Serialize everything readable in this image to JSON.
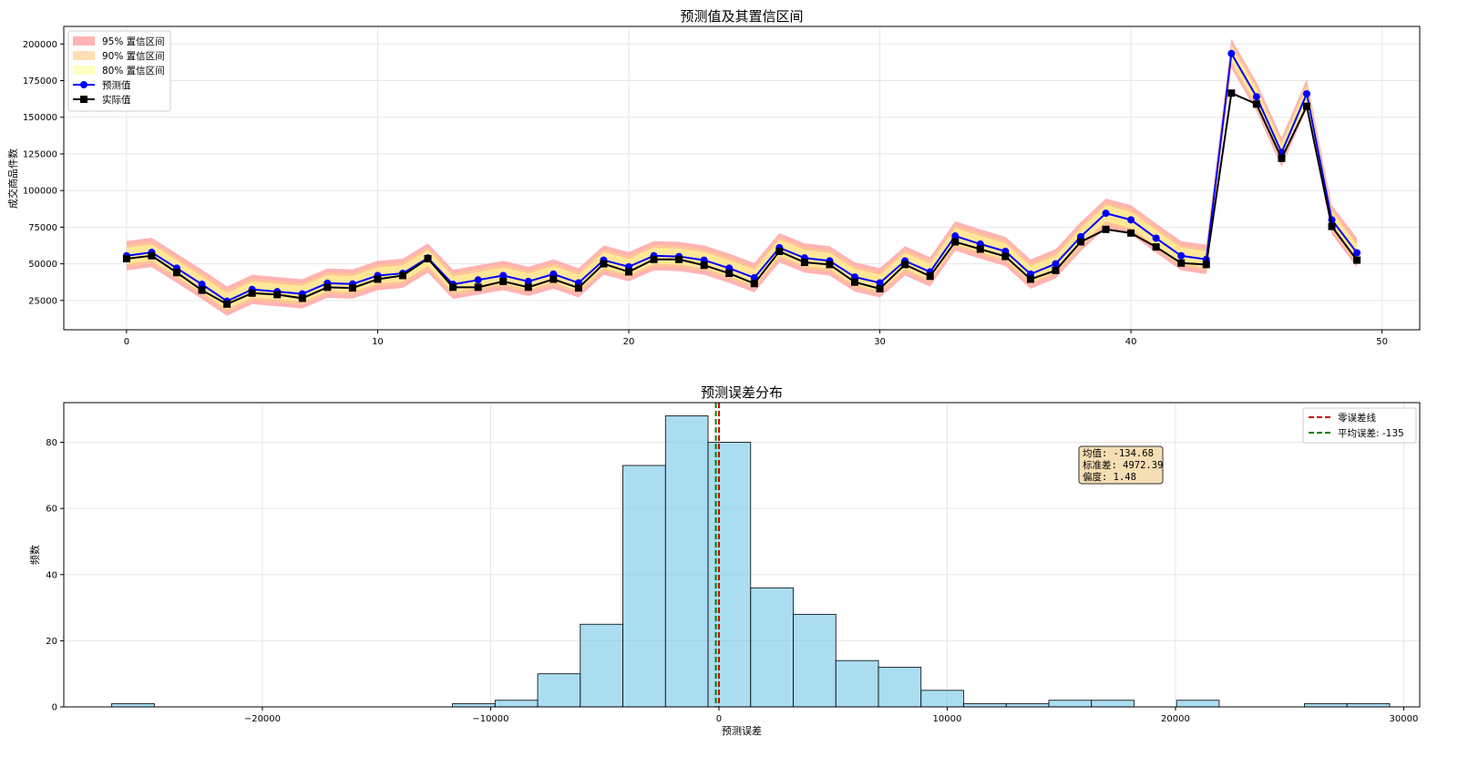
{
  "chart_data": [
    {
      "type": "line",
      "title": "预测值及其置信区间",
      "xlabel": "",
      "ylabel": "成交商品件数",
      "xlim": [
        -2.5,
        51.5
      ],
      "ylim": [
        5000,
        212000
      ],
      "xticks": [
        0,
        10,
        20,
        30,
        40,
        50
      ],
      "yticks": [
        25000,
        50000,
        75000,
        100000,
        125000,
        150000,
        175000,
        200000
      ],
      "grid": true,
      "legend_position": "upper-left",
      "x": [
        0,
        1,
        2,
        3,
        4,
        5,
        6,
        7,
        8,
        9,
        10,
        11,
        12,
        13,
        14,
        15,
        16,
        17,
        18,
        19,
        20,
        21,
        22,
        23,
        24,
        25,
        26,
        27,
        28,
        29,
        30,
        31,
        32,
        33,
        34,
        35,
        36,
        37,
        38,
        39,
        40,
        41,
        42,
        43,
        44,
        45,
        46,
        47,
        48,
        49
      ],
      "series": [
        {
          "name": "预测值",
          "color": "#0000ff",
          "marker": "circle",
          "values": [
            55500,
            57800,
            47000,
            36000,
            24500,
            32500,
            31000,
            29500,
            36800,
            36200,
            42000,
            43500,
            54000,
            36000,
            39000,
            42000,
            38000,
            43000,
            37000,
            52500,
            48000,
            55500,
            55000,
            52500,
            47000,
            40500,
            61000,
            54000,
            52000,
            41000,
            37000,
            52000,
            44500,
            69000,
            63500,
            58500,
            43000,
            50000,
            68500,
            84500,
            80000,
            67500,
            55500,
            53000,
            193500,
            164000,
            126000,
            166000,
            80000,
            57500
          ]
        },
        {
          "name": "实际值",
          "color": "#000000",
          "marker": "square",
          "values": [
            53500,
            55500,
            44000,
            32000,
            22500,
            30000,
            29000,
            26500,
            34000,
            33500,
            39500,
            42000,
            53500,
            34000,
            34000,
            38000,
            34000,
            39500,
            33500,
            50000,
            44500,
            53000,
            53000,
            49000,
            43500,
            36500,
            58500,
            51000,
            49500,
            37500,
            33000,
            49500,
            41500,
            65000,
            60000,
            55000,
            39500,
            45500,
            65000,
            73500,
            71000,
            61500,
            50500,
            49500,
            166500,
            159000,
            122000,
            157500,
            75500,
            52500
          ]
        }
      ],
      "bands": [
        {
          "name": "95% 置信区间",
          "color": "#ff9999",
          "opacity": 0.75,
          "half_width": 10000
        },
        {
          "name": "90% 置信区间",
          "color": "#ffcc88",
          "opacity": 0.65,
          "half_width": 7500
        },
        {
          "name": "80% 置信区间",
          "color": "#ffff99",
          "opacity": 0.6,
          "half_width": 5500
        }
      ]
    },
    {
      "type": "histogram",
      "title": "预测误差分布",
      "xlabel": "预测误差",
      "ylabel": "频数",
      "xlim": [
        -28700,
        30700
      ],
      "ylim": [
        0,
        92
      ],
      "xticks": [
        -20000,
        -10000,
        0,
        10000,
        20000,
        30000
      ],
      "yticks": [
        0,
        20,
        40,
        60,
        80
      ],
      "grid": true,
      "legend_position": "upper-right",
      "bar_color": "#87ceeb",
      "bin_start": -26600,
      "bin_width": 1866,
      "counts": [
        1,
        0,
        0,
        0,
        0,
        0,
        0,
        0,
        1,
        2,
        10,
        25,
        73,
        88,
        80,
        36,
        28,
        14,
        12,
        5,
        1,
        1,
        2,
        2,
        0,
        2,
        0,
        0,
        1,
        1
      ],
      "vlines": [
        {
          "name": "零误差线",
          "x": 0,
          "color": "#cc0000"
        },
        {
          "name": "平均误差: -135",
          "x": -134.68,
          "color": "#008000"
        }
      ],
      "stats_box": [
        "均值: -134.68",
        "标准差: 4972.39",
        "偏度: 1.48"
      ]
    }
  ],
  "tick_labels": {
    "top_x": [
      "0",
      "10",
      "20",
      "30",
      "40",
      "50"
    ],
    "top_y": [
      "25000",
      "50000",
      "75000",
      "100000",
      "125000",
      "150000",
      "175000",
      "200000"
    ],
    "bottom_x": [
      "−20000",
      "−10000",
      "0",
      "10000",
      "20000",
      "30000"
    ],
    "bottom_y": [
      "0",
      "20",
      "40",
      "60",
      "80"
    ]
  }
}
